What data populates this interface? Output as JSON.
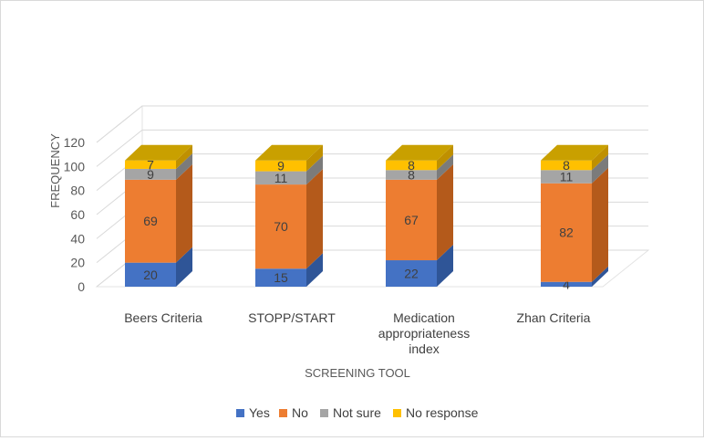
{
  "chart_data": {
    "type": "bar",
    "stacked": true,
    "three_d": true,
    "categories": [
      [
        "Beers Criteria"
      ],
      [
        "STOPP/START"
      ],
      [
        "Medication",
        "appropriateness",
        "index"
      ],
      [
        "Zhan Criteria"
      ]
    ],
    "series": [
      {
        "name": "Yes",
        "values": [
          20,
          15,
          22,
          4
        ],
        "color": "#4472C4",
        "side": "#2F5597",
        "top": "#5B8BD9"
      },
      {
        "name": "No",
        "values": [
          69,
          70,
          67,
          82
        ],
        "color": "#ED7D31",
        "side": "#B45A1B",
        "top": "#F4A261"
      },
      {
        "name": "Not sure",
        "values": [
          9,
          11,
          8,
          11
        ],
        "color": "#A5A5A5",
        "side": "#7B7B7B",
        "top": "#BFBFBF"
      },
      {
        "name": "No response",
        "values": [
          7,
          9,
          8,
          8
        ],
        "color": "#FFC000",
        "side": "#BF9000",
        "top": "#C9A000"
      }
    ],
    "xlabel": "SCREENING TOOL",
    "ylabel": "FREQUENCY",
    "ylim": [
      0,
      120
    ],
    "yticks": [
      0,
      20,
      40,
      60,
      80,
      100,
      120
    ],
    "grid": true,
    "legend_position": "bottom"
  }
}
